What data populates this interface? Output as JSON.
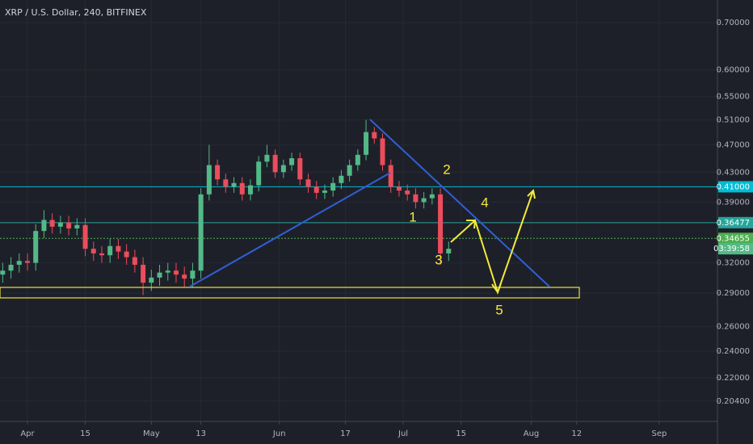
{
  "chart_data": {
    "type": "candlestick",
    "title": "XRP / U.S. Dollar, 240, BITFINEX",
    "log_scale": true,
    "grid": true,
    "up_color": "#53b987",
    "down_color": "#eb4d5c",
    "x": [
      85,
      87,
      89,
      91,
      93,
      95,
      97,
      99,
      101,
      103,
      105,
      107,
      109,
      111,
      113,
      115,
      117,
      119,
      121,
      123,
      125,
      127,
      129,
      131,
      133,
      135,
      137,
      139,
      141,
      143,
      145,
      147,
      149,
      151,
      153,
      155,
      157,
      159,
      161,
      163,
      165,
      167,
      169,
      171,
      173,
      175,
      177,
      179,
      181,
      183,
      185,
      187,
      189,
      191,
      193
    ],
    "open": [
      0.308,
      0.312,
      0.318,
      0.322,
      0.32,
      0.355,
      0.368,
      0.36,
      0.365,
      0.358,
      0.362,
      0.335,
      0.33,
      0.328,
      0.338,
      0.332,
      0.326,
      0.318,
      0.3,
      0.305,
      0.31,
      0.312,
      0.308,
      0.304,
      0.312,
      0.4,
      0.44,
      0.42,
      0.41,
      0.415,
      0.4,
      0.412,
      0.445,
      0.455,
      0.43,
      0.44,
      0.45,
      0.42,
      0.41,
      0.402,
      0.405,
      0.415,
      0.425,
      0.44,
      0.455,
      0.49,
      0.48,
      0.44,
      0.41,
      0.405,
      0.4,
      0.39,
      0.395,
      0.4,
      0.33
    ],
    "high": [
      0.32,
      0.326,
      0.33,
      0.33,
      0.363,
      0.38,
      0.376,
      0.373,
      0.373,
      0.37,
      0.37,
      0.343,
      0.338,
      0.346,
      0.346,
      0.34,
      0.334,
      0.326,
      0.313,
      0.318,
      0.32,
      0.32,
      0.316,
      0.32,
      0.408,
      0.47,
      0.448,
      0.428,
      0.423,
      0.423,
      0.42,
      0.453,
      0.47,
      0.463,
      0.448,
      0.458,
      0.458,
      0.428,
      0.418,
      0.413,
      0.423,
      0.433,
      0.448,
      0.463,
      0.51,
      0.498,
      0.488,
      0.448,
      0.418,
      0.413,
      0.408,
      0.403,
      0.408,
      0.408,
      0.343
    ],
    "low": [
      0.3,
      0.304,
      0.31,
      0.312,
      0.312,
      0.347,
      0.352,
      0.352,
      0.35,
      0.35,
      0.327,
      0.322,
      0.32,
      0.32,
      0.324,
      0.318,
      0.31,
      0.288,
      0.292,
      0.297,
      0.302,
      0.3,
      0.296,
      0.296,
      0.304,
      0.392,
      0.412,
      0.402,
      0.402,
      0.392,
      0.392,
      0.404,
      0.437,
      0.422,
      0.422,
      0.432,
      0.412,
      0.402,
      0.394,
      0.394,
      0.397,
      0.407,
      0.417,
      0.432,
      0.447,
      0.472,
      0.432,
      0.402,
      0.397,
      0.392,
      0.382,
      0.382,
      0.387,
      0.318,
      0.322
    ],
    "close": [
      0.312,
      0.318,
      0.322,
      0.32,
      0.355,
      0.368,
      0.36,
      0.365,
      0.358,
      0.362,
      0.335,
      0.33,
      0.328,
      0.338,
      0.332,
      0.326,
      0.318,
      0.3,
      0.305,
      0.31,
      0.312,
      0.308,
      0.304,
      0.312,
      0.4,
      0.44,
      0.42,
      0.41,
      0.415,
      0.4,
      0.412,
      0.445,
      0.455,
      0.43,
      0.44,
      0.45,
      0.42,
      0.41,
      0.402,
      0.405,
      0.415,
      0.425,
      0.44,
      0.455,
      0.49,
      0.48,
      0.44,
      0.41,
      0.405,
      0.4,
      0.39,
      0.395,
      0.4,
      0.33,
      0.335
    ],
    "xlim": [
      84.35,
      258.1
    ],
    "xticks": [
      {
        "value": 91,
        "label": "Apr"
      },
      {
        "value": 105,
        "label": "15"
      },
      {
        "value": 121,
        "label": "May"
      },
      {
        "value": 133,
        "label": "13"
      },
      {
        "value": 152,
        "label": "Jun"
      },
      {
        "value": 168,
        "label": "17"
      },
      {
        "value": 182,
        "label": "Jul"
      },
      {
        "value": 196,
        "label": "15"
      },
      {
        "value": 213,
        "label": "Aug"
      },
      {
        "value": 224,
        "label": "12"
      },
      {
        "value": 244,
        "label": "Sep"
      }
    ],
    "ylim": [
      0.1909,
      0.7535
    ],
    "yticks": [
      {
        "value": 0.7,
        "label": "0.70000"
      },
      {
        "value": 0.6,
        "label": "0.60000"
      },
      {
        "value": 0.55,
        "label": "0.55000"
      },
      {
        "value": 0.51,
        "label": "0.51000"
      },
      {
        "value": 0.47,
        "label": "0.47000"
      },
      {
        "value": 0.43,
        "label": "0.43000"
      },
      {
        "value": 0.39,
        "label": "0.39000"
      },
      {
        "value": 0.32,
        "label": "0.32000"
      },
      {
        "value": 0.29,
        "label": "0.29000"
      },
      {
        "value": 0.26,
        "label": "0.26000"
      },
      {
        "value": 0.24,
        "label": "0.24000"
      },
      {
        "value": 0.22,
        "label": "0.22000"
      },
      {
        "value": 0.204,
        "label": "0.20400"
      }
    ],
    "price_lines": {
      "values": [
        0.41,
        0.36477,
        0.34655
      ],
      "value_labels": [
        "0.41000",
        "0.36477",
        "0.34655"
      ],
      "colors": [
        "#00bcd4",
        "#26a69a",
        "#4caf50"
      ]
    },
    "countdown": "03:39:58",
    "annotations": [
      "1",
      "2",
      "3",
      "4",
      "5"
    ]
  }
}
